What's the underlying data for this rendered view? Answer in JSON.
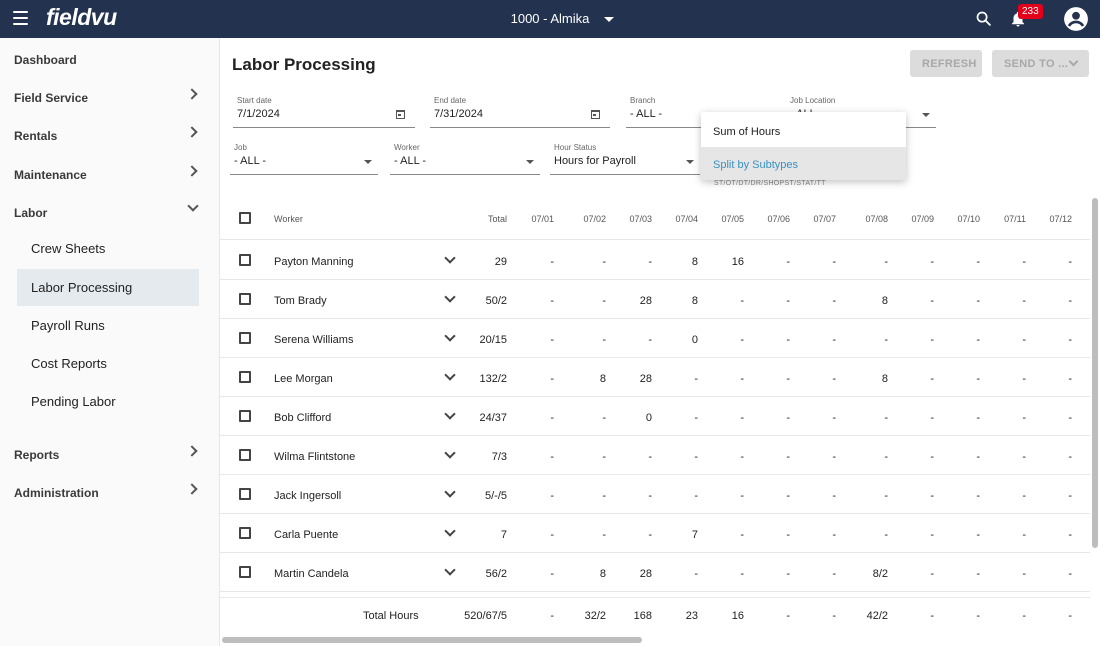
{
  "topbar": {
    "logo": "fieldvu",
    "company": "1000 - Almika",
    "notification_count": "233",
    "bg_color": "#22324f"
  },
  "sidebar": {
    "items": [
      {
        "label": "Dashboard"
      },
      {
        "label": "Field Service"
      },
      {
        "label": "Rentals"
      },
      {
        "label": "Maintenance"
      },
      {
        "label": "Labor"
      },
      {
        "label": "Reports"
      },
      {
        "label": "Administration"
      }
    ],
    "labor_subitems": [
      {
        "label": "Crew Sheets"
      },
      {
        "label": "Labor Processing",
        "active": true
      },
      {
        "label": "Payroll Runs"
      },
      {
        "label": "Cost Reports"
      },
      {
        "label": "Pending Labor"
      }
    ]
  },
  "page": {
    "title": "Labor Processing",
    "refresh_label": "REFRESH",
    "send_to_label": "SEND TO ..."
  },
  "filters": {
    "start_date": {
      "label": "Start date",
      "value": "7/1/2024"
    },
    "end_date": {
      "label": "End date",
      "value": "7/31/2024"
    },
    "branch": {
      "label": "Branch",
      "value": "- ALL -"
    },
    "job_location": {
      "label": "Job Location",
      "value": "- ALL -"
    },
    "job": {
      "label": "Job",
      "value": "- ALL -"
    },
    "worker": {
      "label": "Worker",
      "value": "- ALL -"
    },
    "hour_status": {
      "label": "Hour Status",
      "value": "Hours for Payroll"
    },
    "subtype_helper": "ST/OT/DT/DR/SHOPST/STAT/TT"
  },
  "hours_menu": {
    "options": [
      "Sum of Hours",
      "Split by Subtypes"
    ],
    "selected": "Split by Subtypes",
    "selected_color": "#3a91c4"
  },
  "table": {
    "headers": {
      "worker": "Worker",
      "total": "Total",
      "dates": [
        "07/01",
        "07/02",
        "07/03",
        "07/04",
        "07/05",
        "07/06",
        "07/07",
        "07/08",
        "07/09",
        "07/10",
        "07/11",
        "07/12"
      ]
    },
    "rows": [
      {
        "worker": "Payton Manning",
        "total": "29",
        "days": [
          "-",
          "-",
          "-",
          "8",
          "16",
          "-",
          "-",
          "-",
          "-",
          "-",
          "-",
          "-"
        ]
      },
      {
        "worker": "Tom Brady",
        "total": "50/2",
        "days": [
          "-",
          "-",
          "28",
          "8",
          "-",
          "-",
          "-",
          "8",
          "-",
          "-",
          "-",
          "-"
        ]
      },
      {
        "worker": "Serena Williams",
        "total": "20/15",
        "days": [
          "-",
          "-",
          "-",
          "0",
          "-",
          "-",
          "-",
          "-",
          "-",
          "-",
          "-",
          "-"
        ]
      },
      {
        "worker": "Lee Morgan",
        "total": "132/2",
        "days": [
          "-",
          "8",
          "28",
          "-",
          "-",
          "-",
          "-",
          "8",
          "-",
          "-",
          "-",
          "-"
        ]
      },
      {
        "worker": "Bob Clifford",
        "total": "24/37",
        "days": [
          "-",
          "-",
          "0",
          "-",
          "-",
          "-",
          "-",
          "-",
          "-",
          "-",
          "-",
          "-"
        ]
      },
      {
        "worker": "Wilma Flintstone",
        "total": "7/3",
        "days": [
          "-",
          "-",
          "-",
          "-",
          "-",
          "-",
          "-",
          "-",
          "-",
          "-",
          "-",
          "-"
        ]
      },
      {
        "worker": "Jack Ingersoll",
        "total": "5/-/5",
        "days": [
          "-",
          "-",
          "-",
          "-",
          "-",
          "-",
          "-",
          "-",
          "-",
          "-",
          "-",
          "-"
        ]
      },
      {
        "worker": "Carla Puente",
        "total": "7",
        "days": [
          "-",
          "-",
          "-",
          "7",
          "-",
          "-",
          "-",
          "-",
          "-",
          "-",
          "-",
          "-"
        ]
      },
      {
        "worker": "Martin Candela",
        "total": "56/2",
        "days": [
          "-",
          "8",
          "28",
          "-",
          "-",
          "-",
          "-",
          "8/2",
          "-",
          "-",
          "-",
          "-"
        ]
      }
    ],
    "totals": {
      "label": "Total Hours",
      "total": "520/67/5",
      "days": [
        "-",
        "32/2",
        "168",
        "23",
        "16",
        "-",
        "-",
        "42/2",
        "-",
        "-",
        "-",
        "-"
      ]
    }
  }
}
